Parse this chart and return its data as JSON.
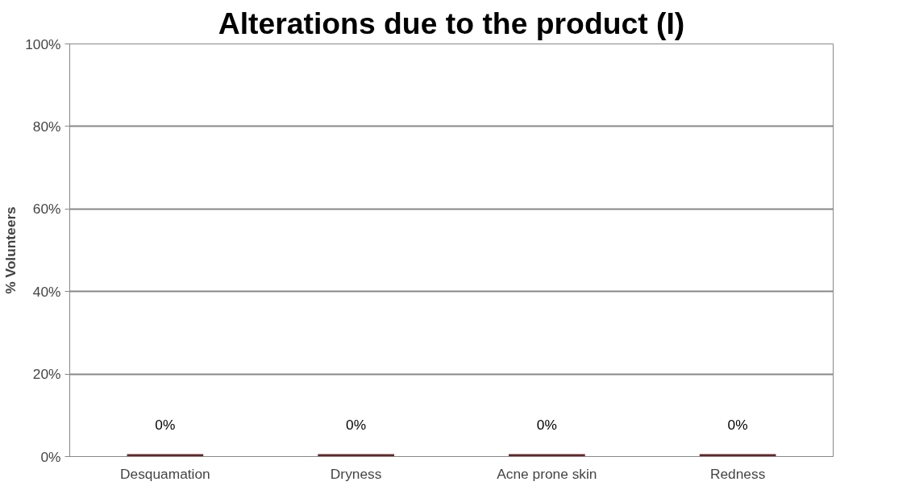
{
  "chart_data": {
    "type": "bar",
    "title": "Alterations due to the product (I)",
    "ylabel": "% Volunteers",
    "categories": [
      "Desquamation",
      "Dryness",
      "Acne prone skin",
      "Redness"
    ],
    "values": [
      0,
      0,
      0,
      0
    ],
    "color": "#6b2326",
    "value_labels": [
      "0%",
      "0%",
      "0%",
      "0%"
    ],
    "ylim": [
      0,
      100
    ],
    "yticks": [
      {
        "value": 0,
        "label": "0%"
      },
      {
        "value": 20,
        "label": "20%"
      },
      {
        "value": 40,
        "label": "40%"
      },
      {
        "value": 60,
        "label": "60%"
      },
      {
        "value": 80,
        "label": "80%"
      },
      {
        "value": 100,
        "label": "100%"
      }
    ],
    "grid": "y"
  }
}
